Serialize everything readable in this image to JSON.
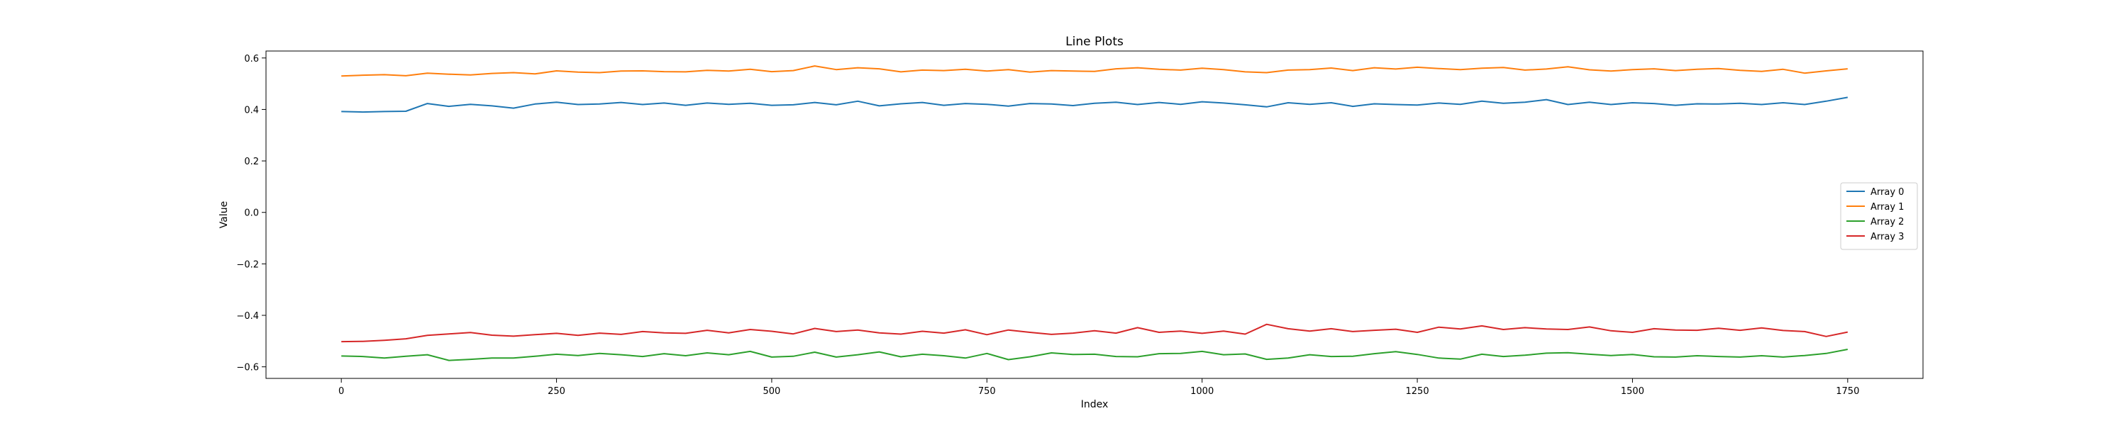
{
  "chart_data": {
    "type": "line",
    "title": "Line Plots",
    "xlabel": "Index",
    "ylabel": "Value",
    "xlim": [
      -87.5,
      1837.5
    ],
    "ylim": [
      -0.645,
      0.627
    ],
    "x_ticks": [
      0,
      250,
      500,
      750,
      1000,
      1250,
      1500,
      1750
    ],
    "x_tick_labels": [
      "0",
      "250",
      "500",
      "750",
      "1000",
      "1250",
      "1500",
      "1750"
    ],
    "y_ticks": [
      -0.6,
      -0.4,
      -0.2,
      0.0,
      0.2,
      0.4,
      0.6
    ],
    "y_tick_labels": [
      "−0.6",
      "−0.4",
      "−0.2",
      "0.0",
      "0.2",
      "0.4",
      "0.6"
    ],
    "grid": false,
    "legend_position": "center-right",
    "x": [
      0,
      25,
      50,
      75,
      100,
      125,
      150,
      175,
      200,
      225,
      250,
      275,
      300,
      325,
      350,
      375,
      400,
      425,
      450,
      475,
      500,
      525,
      550,
      575,
      600,
      625,
      650,
      675,
      700,
      725,
      750,
      775,
      800,
      825,
      850,
      875,
      900,
      925,
      950,
      975,
      1000,
      1025,
      1050,
      1075,
      1100,
      1125,
      1150,
      1175,
      1200,
      1225,
      1250,
      1275,
      1300,
      1325,
      1350,
      1375,
      1400,
      1425,
      1450,
      1475,
      1500,
      1525,
      1550,
      1575,
      1600,
      1625,
      1650,
      1675,
      1700,
      1725,
      1750
    ],
    "series": [
      {
        "name": "Array 0",
        "color": "#1f77b4",
        "values": [
          0.392,
          0.39,
          0.392,
          0.393,
          0.423,
          0.412,
          0.42,
          0.414,
          0.405,
          0.421,
          0.428,
          0.419,
          0.421,
          0.427,
          0.419,
          0.425,
          0.416,
          0.425,
          0.42,
          0.424,
          0.416,
          0.418,
          0.427,
          0.418,
          0.432,
          0.414,
          0.422,
          0.427,
          0.416,
          0.423,
          0.42,
          0.413,
          0.423,
          0.421,
          0.415,
          0.424,
          0.428,
          0.419,
          0.427,
          0.42,
          0.43,
          0.425,
          0.418,
          0.41,
          0.426,
          0.42,
          0.426,
          0.412,
          0.422,
          0.419,
          0.417,
          0.425,
          0.42,
          0.432,
          0.424,
          0.428,
          0.438,
          0.419,
          0.428,
          0.419,
          0.426,
          0.423,
          0.416,
          0.422,
          0.421,
          0.424,
          0.419,
          0.426,
          0.419,
          0.432,
          0.447
        ]
      },
      {
        "name": "Array 1",
        "color": "#ff7f0e",
        "values": [
          0.53,
          0.533,
          0.535,
          0.531,
          0.541,
          0.537,
          0.534,
          0.54,
          0.543,
          0.538,
          0.55,
          0.545,
          0.543,
          0.549,
          0.55,
          0.547,
          0.546,
          0.552,
          0.549,
          0.556,
          0.547,
          0.551,
          0.569,
          0.555,
          0.562,
          0.558,
          0.546,
          0.553,
          0.551,
          0.556,
          0.549,
          0.555,
          0.545,
          0.551,
          0.549,
          0.548,
          0.558,
          0.562,
          0.556,
          0.553,
          0.56,
          0.555,
          0.546,
          0.543,
          0.553,
          0.555,
          0.561,
          0.551,
          0.562,
          0.557,
          0.564,
          0.559,
          0.555,
          0.56,
          0.563,
          0.553,
          0.557,
          0.566,
          0.554,
          0.549,
          0.555,
          0.558,
          0.551,
          0.556,
          0.559,
          0.552,
          0.548,
          0.556,
          0.541,
          0.55,
          0.558
        ]
      },
      {
        "name": "Array 2",
        "color": "#2ca02c",
        "values": [
          -0.558,
          -0.56,
          -0.566,
          -0.559,
          -0.553,
          -0.575,
          -0.571,
          -0.566,
          -0.566,
          -0.559,
          -0.551,
          -0.556,
          -0.548,
          -0.553,
          -0.56,
          -0.549,
          -0.557,
          -0.546,
          -0.553,
          -0.54,
          -0.562,
          -0.559,
          -0.543,
          -0.562,
          -0.553,
          -0.542,
          -0.561,
          -0.551,
          -0.557,
          -0.566,
          -0.548,
          -0.572,
          -0.561,
          -0.546,
          -0.552,
          -0.551,
          -0.56,
          -0.561,
          -0.549,
          -0.548,
          -0.54,
          -0.553,
          -0.55,
          -0.571,
          -0.566,
          -0.553,
          -0.56,
          -0.559,
          -0.549,
          -0.541,
          -0.552,
          -0.566,
          -0.57,
          -0.551,
          -0.56,
          -0.555,
          -0.547,
          -0.545,
          -0.551,
          -0.556,
          -0.552,
          -0.561,
          -0.562,
          -0.557,
          -0.56,
          -0.562,
          -0.557,
          -0.562,
          -0.556,
          -0.548,
          -0.532
        ]
      },
      {
        "name": "Array 3",
        "color": "#d62728",
        "values": [
          -0.502,
          -0.501,
          -0.497,
          -0.491,
          -0.478,
          -0.472,
          -0.467,
          -0.477,
          -0.481,
          -0.475,
          -0.47,
          -0.478,
          -0.469,
          -0.474,
          -0.463,
          -0.468,
          -0.47,
          -0.458,
          -0.468,
          -0.455,
          -0.462,
          -0.472,
          -0.451,
          -0.463,
          -0.457,
          -0.468,
          -0.473,
          -0.462,
          -0.469,
          -0.456,
          -0.475,
          -0.457,
          -0.466,
          -0.474,
          -0.469,
          -0.46,
          -0.469,
          -0.448,
          -0.466,
          -0.461,
          -0.47,
          -0.461,
          -0.473,
          -0.435,
          -0.452,
          -0.461,
          -0.452,
          -0.463,
          -0.458,
          -0.454,
          -0.466,
          -0.446,
          -0.453,
          -0.441,
          -0.455,
          -0.448,
          -0.453,
          -0.455,
          -0.445,
          -0.46,
          -0.466,
          -0.452,
          -0.457,
          -0.458,
          -0.45,
          -0.458,
          -0.449,
          -0.459,
          -0.463,
          -0.482,
          -0.465
        ]
      }
    ]
  }
}
